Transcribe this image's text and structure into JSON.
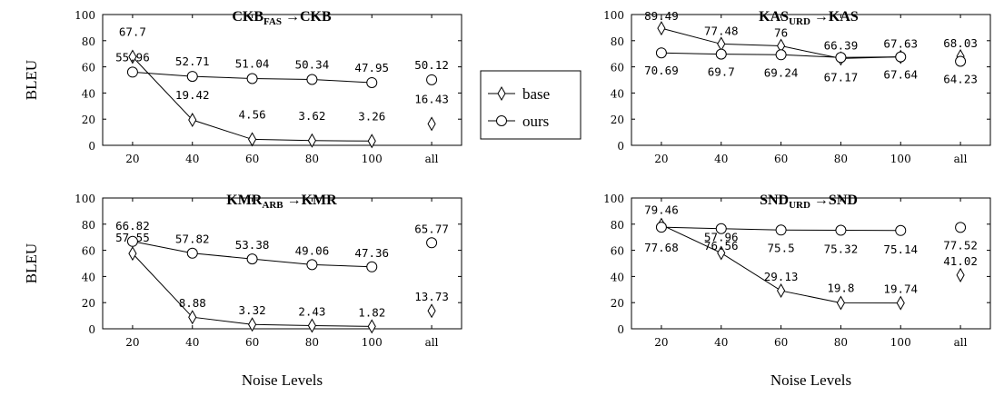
{
  "chart_data": [
    {
      "type": "line",
      "title": {
        "main": "CKB",
        "sub": "FAS",
        "target": "CKB"
      },
      "ylabel": "BLEU",
      "xlabel": "",
      "categories": [
        "20",
        "40",
        "60",
        "80",
        "100",
        "all"
      ],
      "ylim": [
        0,
        100
      ],
      "yticks": [
        0,
        20,
        40,
        60,
        80,
        100
      ],
      "series": [
        {
          "name": "base",
          "marker": "diamond",
          "values": [
            67.7,
            19.42,
            4.56,
            3.62,
            3.26,
            16.43
          ]
        },
        {
          "name": "ours",
          "marker": "circle",
          "values": [
            55.96,
            52.71,
            51.04,
            50.34,
            47.95,
            50.12
          ]
        }
      ]
    },
    {
      "type": "line",
      "title": {
        "main": "KAS",
        "sub": "URD",
        "target": "KAS"
      },
      "ylabel": "",
      "xlabel": "",
      "categories": [
        "20",
        "40",
        "60",
        "80",
        "100",
        "all"
      ],
      "ylim": [
        0,
        100
      ],
      "yticks": [
        0,
        20,
        40,
        60,
        80,
        100
      ],
      "series": [
        {
          "name": "base",
          "marker": "diamond",
          "values": [
            89.49,
            77.48,
            76,
            66.39,
            67.63,
            68.03
          ]
        },
        {
          "name": "ours",
          "marker": "circle",
          "values": [
            70.69,
            69.7,
            69.24,
            67.17,
            67.64,
            64.23
          ]
        }
      ]
    },
    {
      "type": "line",
      "title": {
        "main": "KMR",
        "sub": "ARB",
        "target": "KMR"
      },
      "ylabel": "BLEU",
      "xlabel": "Noise Levels",
      "categories": [
        "20",
        "40",
        "60",
        "80",
        "100",
        "all"
      ],
      "ylim": [
        0,
        100
      ],
      "yticks": [
        0,
        20,
        40,
        60,
        80,
        100
      ],
      "series": [
        {
          "name": "base",
          "marker": "diamond",
          "values": [
            57.55,
            8.88,
            3.32,
            2.43,
            1.82,
            13.73
          ]
        },
        {
          "name": "ours",
          "marker": "circle",
          "values": [
            66.82,
            57.82,
            53.38,
            49.06,
            47.36,
            65.77
          ]
        }
      ]
    },
    {
      "type": "line",
      "title": {
        "main": "SND",
        "sub": "URD",
        "target": "SND"
      },
      "ylabel": "",
      "xlabel": "Noise Levels",
      "categories": [
        "20",
        "40",
        "60",
        "80",
        "100",
        "all"
      ],
      "ylim": [
        0,
        100
      ],
      "yticks": [
        0,
        20,
        40,
        60,
        80,
        100
      ],
      "series": [
        {
          "name": "base",
          "marker": "diamond",
          "values": [
            79.46,
            57.96,
            29.13,
            19.8,
            19.74,
            41.02
          ]
        },
        {
          "name": "ours",
          "marker": "circle",
          "values": [
            77.68,
            76.56,
            75.5,
            75.32,
            75.14,
            77.52
          ]
        }
      ]
    }
  ],
  "legend": {
    "placement": "center",
    "items": [
      "base",
      "ours"
    ]
  },
  "colors": {
    "line": "#000000",
    "background": "#ffffff"
  }
}
